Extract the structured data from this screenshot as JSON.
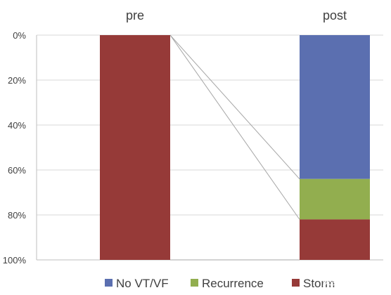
{
  "chart_data": {
    "type": "bar",
    "stacked": true,
    "percent": true,
    "categories": [
      "pre",
      "post"
    ],
    "series": [
      {
        "name": "No VT/VF",
        "color": "#5B6FB0",
        "values": [
          0,
          64
        ]
      },
      {
        "name": "Recurrence",
        "color": "#92AE4F",
        "values": [
          0,
          18
        ]
      },
      {
        "name": "Storm",
        "color": "#963A38",
        "values": [
          100,
          18
        ]
      }
    ],
    "y_ticks": [
      "0%",
      "20%",
      "40%",
      "60%",
      "80%",
      "100%"
    ],
    "ylim": [
      0,
      100
    ],
    "y_axis_direction": "top-to-bottom",
    "category_labels_position": "top",
    "legend_position": "bottom",
    "connector_lines": true,
    "grid": true
  },
  "watermark": "头条 @程中伟"
}
